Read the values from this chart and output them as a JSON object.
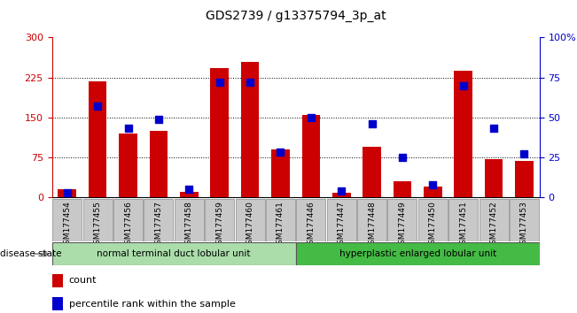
{
  "title": "GDS2739 / g13375794_3p_at",
  "samples": [
    "GSM177454",
    "GSM177455",
    "GSM177456",
    "GSM177457",
    "GSM177458",
    "GSM177459",
    "GSM177460",
    "GSM177461",
    "GSM177446",
    "GSM177447",
    "GSM177448",
    "GSM177449",
    "GSM177450",
    "GSM177451",
    "GSM177452",
    "GSM177453"
  ],
  "counts": [
    15,
    218,
    120,
    125,
    10,
    242,
    255,
    90,
    155,
    8,
    95,
    30,
    20,
    237,
    72,
    68
  ],
  "percentiles": [
    3,
    57,
    43,
    49,
    5,
    72,
    72,
    28,
    50,
    4,
    46,
    25,
    8,
    70,
    43,
    27
  ],
  "group1_label": "normal terminal duct lobular unit",
  "group2_label": "hyperplastic enlarged lobular unit",
  "group1_count": 8,
  "group2_count": 8,
  "bar_color": "#cc0000",
  "dot_color": "#0000cc",
  "ylim_left": [
    0,
    300
  ],
  "ylim_right": [
    0,
    100
  ],
  "yticks_left": [
    0,
    75,
    150,
    225,
    300
  ],
  "yticks_right": [
    0,
    25,
    50,
    75,
    100
  ],
  "tick_bg": "#c8c8c8",
  "group1_bg": "#aaddaa",
  "group2_bg": "#44bb44",
  "disease_state_label": "disease state",
  "legend_count_label": "count",
  "legend_pct_label": "percentile rank within the sample",
  "left_axis_color": "#cc0000",
  "right_axis_color": "#0000cc"
}
